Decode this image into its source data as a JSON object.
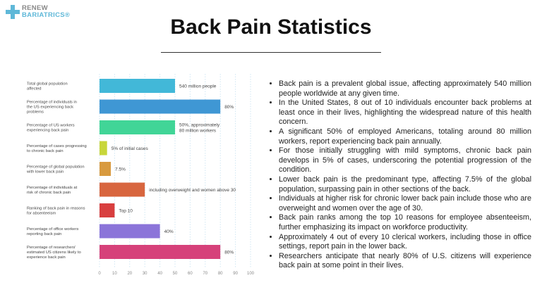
{
  "logo": {
    "line1": "RENEW",
    "line2": "BARIATRICS®"
  },
  "title": "Back Pain Statistics",
  "chart_data": {
    "type": "bar",
    "orientation": "horizontal",
    "categories": [
      "Total global population affected",
      "Percentage of individuals in the US experiencing back problems",
      "Percentage of US workers experiencing back pain",
      "Percentage of cases progressing to chronic back pain",
      "Percentage of global population with lower back pain",
      "Percentage of individuals at risk of chronic back pain",
      "Ranking of back pain in reasons for absenteeism",
      "Percentage of office workers reporting back pain",
      "Percentage of researchers' estimated US citizens likely to experience back pain"
    ],
    "values": [
      50,
      80,
      50,
      5,
      7.5,
      30,
      10,
      40,
      80
    ],
    "data_labels": [
      "540 million people",
      "80%",
      "50%, approximately|80 million workers",
      "5% of initial cases",
      "7.5%",
      "including overweight and women above 30",
      "Top 10",
      "40%",
      "80%"
    ],
    "colors": [
      "#42b8d8",
      "#3f97d4",
      "#41d597",
      "#c8d63a",
      "#d89a3f",
      "#d8663f",
      "#d83f3f",
      "#8b74d9",
      "#d6417a"
    ],
    "xlim": [
      0,
      100
    ],
    "xticks": [
      0,
      10,
      20,
      30,
      40,
      50,
      60,
      70,
      80,
      90,
      100
    ],
    "grid": true
  },
  "bullets": [
    "Back pain is a prevalent global issue, affecting approximately 540 million people worldwide at any given time.",
    "In the United States, 8 out of 10 individuals encounter back problems at least once in their lives, highlighting the widespread nature of this health concern.",
    "A significant 50% of employed Americans, totaling around 80 million workers, report experiencing back pain annually.",
    "For those initially struggling with mild symptoms, chronic back pain develops in 5% of cases, underscoring the potential progression of the condition.",
    "Lower back pain is the predominant type, affecting 7.5% of the global population, surpassing pain in other sections of the back.",
    "Individuals at higher risk for chronic lower back pain include those who are overweight and women over the age of 30.",
    "Back pain ranks among the top 10 reasons for employee absenteeism, further emphasizing its impact on workforce productivity.",
    "Approximately 4 out of every 10 clerical workers, including those in office settings, report pain in the lower back.",
    "Researchers anticipate that nearly 80% of U.S. citizens will experience back pain at some point in their lives."
  ]
}
